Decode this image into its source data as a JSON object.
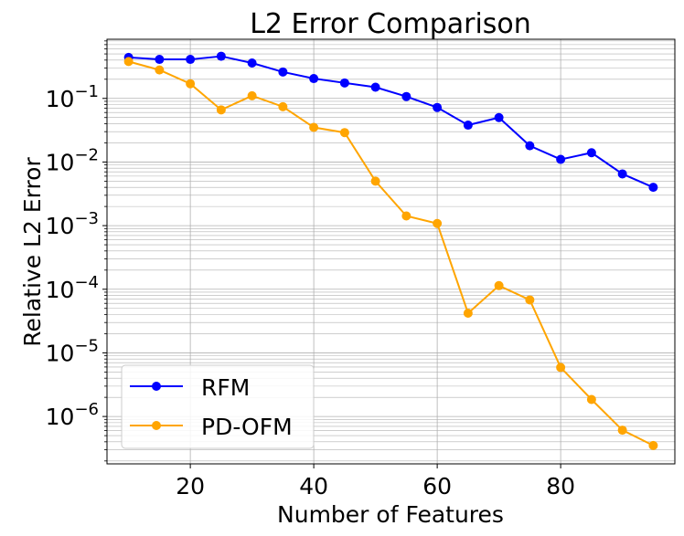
{
  "chart_data": {
    "type": "line",
    "title": "L2 Error Comparison",
    "xlabel": "Number of Features",
    "ylabel": "Relative L2 Error",
    "x": [
      10,
      15,
      20,
      25,
      30,
      35,
      40,
      45,
      50,
      55,
      60,
      65,
      70,
      75,
      80,
      85,
      90,
      95
    ],
    "series": [
      {
        "name": "RFM",
        "color": "#0000ff",
        "marker": "circle",
        "values": [
          0.44,
          0.41,
          0.41,
          0.46,
          0.36,
          0.26,
          0.205,
          0.175,
          0.15,
          0.107,
          0.072,
          0.038,
          0.05,
          0.018,
          0.011,
          0.014,
          0.0065,
          0.004
        ]
      },
      {
        "name": "PD-OFM",
        "color": "#ffa500",
        "marker": "circle",
        "values": [
          0.38,
          0.28,
          0.17,
          0.066,
          0.11,
          0.074,
          0.035,
          0.029,
          0.005,
          0.00142,
          0.00108,
          4.2e-05,
          0.000114,
          6.8e-05,
          5.9e-06,
          1.85e-06,
          6.1e-07,
          3.5e-07
        ]
      }
    ],
    "xlim": [
      6.5,
      98.5
    ],
    "ylim": [
      1.8e-07,
      0.85
    ],
    "yscale": "log",
    "xticks": [
      20,
      40,
      60,
      80
    ],
    "xtick_labels": [
      "20",
      "40",
      "60",
      "80"
    ],
    "yticks": [
      1e-06,
      1e-05,
      0.0001,
      0.001,
      0.01,
      0.1
    ],
    "ytick_labels": [
      {
        "base": "10",
        "exp": "−6"
      },
      {
        "base": "10",
        "exp": "−5"
      },
      {
        "base": "10",
        "exp": "−4"
      },
      {
        "base": "10",
        "exp": "−3"
      },
      {
        "base": "10",
        "exp": "−2"
      },
      {
        "base": "10",
        "exp": "−1"
      }
    ],
    "grid": "major and minor",
    "legend": "lower-left"
  }
}
